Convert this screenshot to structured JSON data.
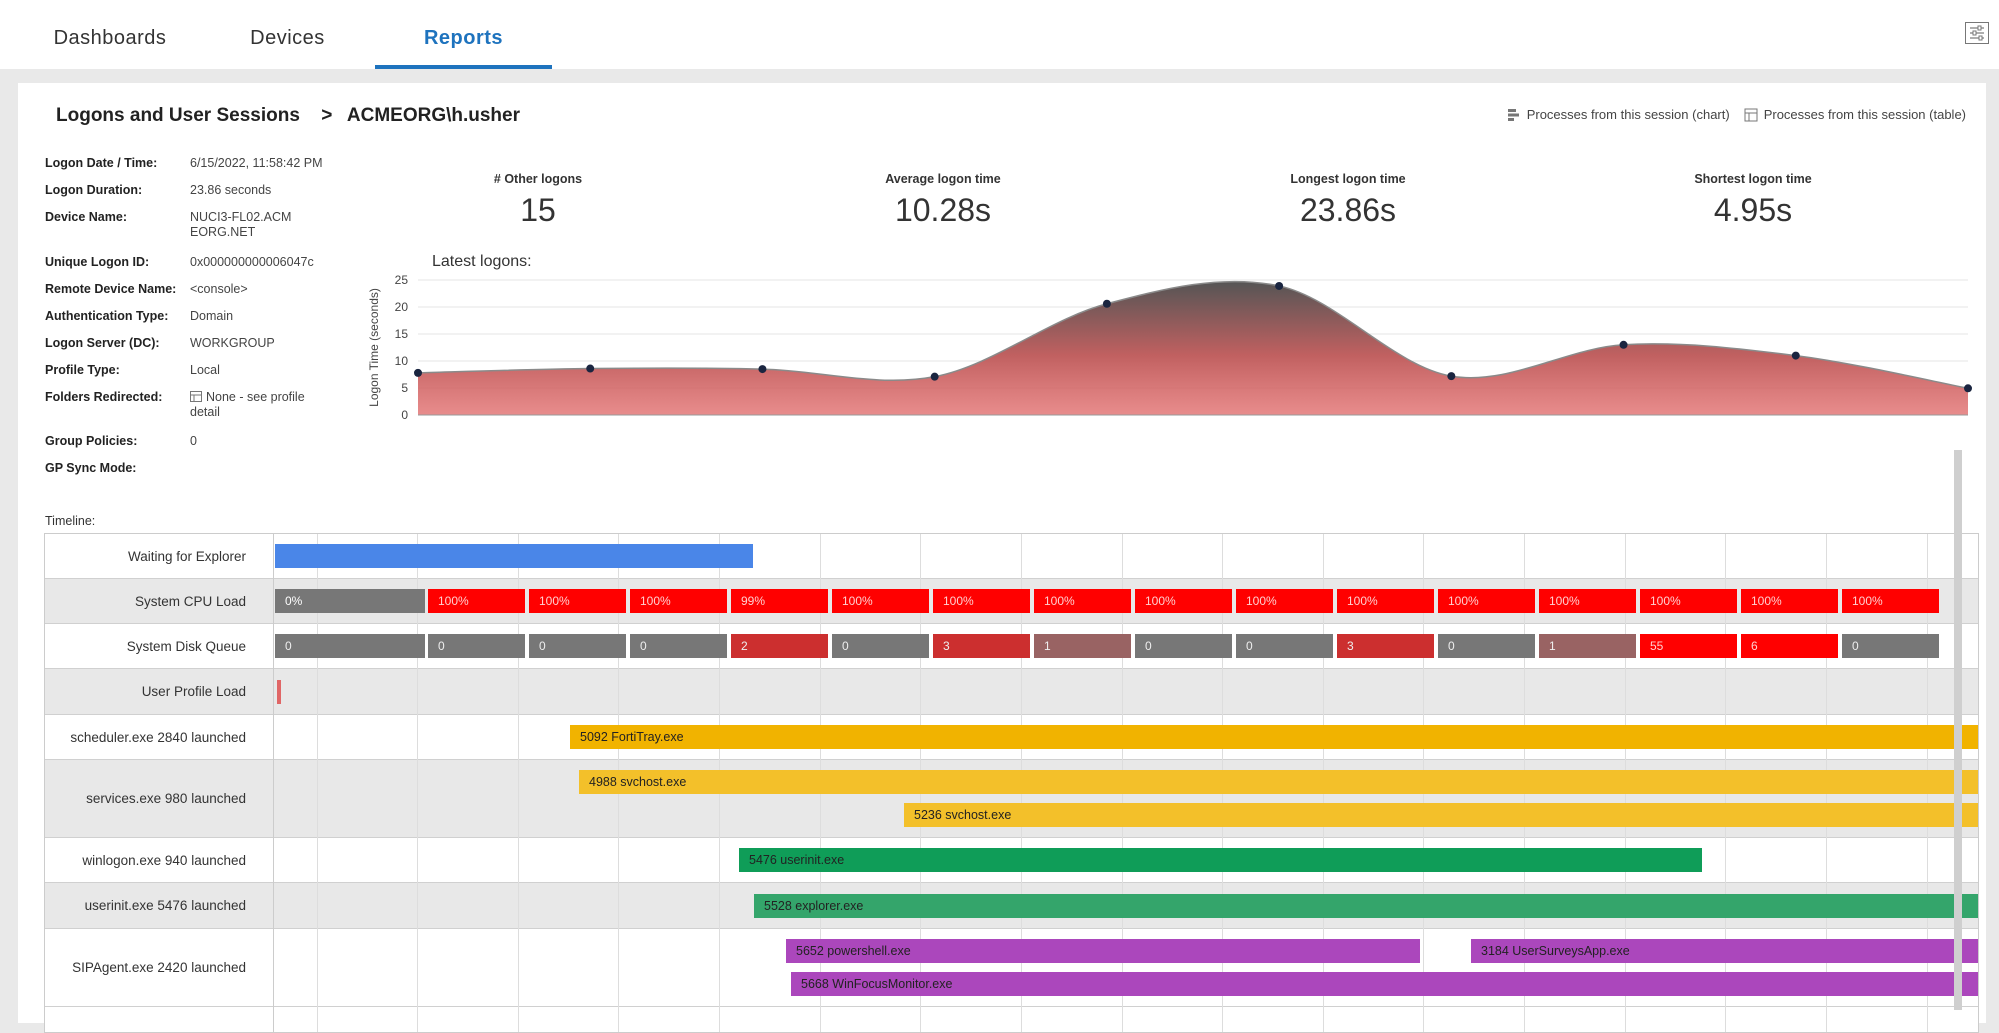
{
  "nav": {
    "tabs": [
      {
        "label": "Dashboards",
        "active": false
      },
      {
        "label": "Devices",
        "active": false
      },
      {
        "label": "Reports",
        "active": true
      }
    ],
    "settings_icon": "sliders-icon"
  },
  "breadcrumb": {
    "parent": "Logons and User Sessions",
    "separator": ">",
    "current": "ACMEORG\\h.usher"
  },
  "links": {
    "chart": "Processes from this session (chart)",
    "table": "Processes from this session (table)"
  },
  "details": [
    {
      "label": "Logon Date / Time:",
      "value": "6/15/2022, 11:58:42 PM"
    },
    {
      "label": "Logon Duration:",
      "value": "23.86 seconds"
    },
    {
      "label": "Device Name:",
      "value": "NUCI3-FL02.ACMEORG.NET"
    },
    {
      "label": "Unique Logon ID:",
      "value": "0x000000000006047c"
    },
    {
      "label": "Remote Device Name:",
      "value": "<console>"
    },
    {
      "label": "Authentication Type:",
      "value": "Domain"
    },
    {
      "label": "Logon Server (DC):",
      "value": "WORKGROUP"
    },
    {
      "label": "Profile Type:",
      "value": "Local"
    },
    {
      "label": "Folders Redirected:",
      "value": "None - see profile detail"
    },
    {
      "label": "Group Policies:",
      "value": "0"
    },
    {
      "label": "GP Sync Mode:",
      "value": ""
    }
  ],
  "stats": [
    {
      "label": "# Other logons",
      "value": "15"
    },
    {
      "label": "Average logon time",
      "value": "10.28s"
    },
    {
      "label": "Longest logon time",
      "value": "23.86s"
    },
    {
      "label": "Shortest logon time",
      "value": "4.95s"
    }
  ],
  "chart_data": {
    "type": "area",
    "title": "Latest logons:",
    "xlabel": "",
    "ylabel": "Logon Time (seconds)",
    "ylim": [
      0,
      25
    ],
    "yticks": [
      0,
      5,
      10,
      15,
      20,
      25
    ],
    "values": [
      7.8,
      8.6,
      8.5,
      7.1,
      20.6,
      23.9,
      7.2,
      13.0,
      11.0,
      4.95
    ],
    "grid": true,
    "colors": {
      "fill_top": "#555555",
      "fill_bottom": "#e06666",
      "point": "#1a2540"
    }
  },
  "timeline": {
    "label": "Timeline:",
    "rows": [
      {
        "label": "Waiting for Explorer",
        "shade": false
      },
      {
        "label": "System CPU Load",
        "shade": true
      },
      {
        "label": "System Disk Queue",
        "shade": false
      },
      {
        "label": "User Profile Load",
        "shade": true
      },
      {
        "label": "scheduler.exe 2840 launched",
        "shade": false
      },
      {
        "label": "services.exe 980 launched",
        "shade": true
      },
      {
        "label": "winlogon.exe 940 launched",
        "shade": false
      },
      {
        "label": "userinit.exe 5476 launched",
        "shade": true
      },
      {
        "label": "SIPAgent.exe 2420 launched",
        "shade": false
      }
    ],
    "cpu_values": [
      "0%",
      "100%",
      "100%",
      "100%",
      "99%",
      "100%",
      "100%",
      "100%",
      "100%",
      "100%",
      "100%",
      "100%",
      "100%",
      "100%",
      "100%",
      "100%"
    ],
    "disk_values": [
      "0",
      "0",
      "0",
      "0",
      "2",
      "0",
      "3",
      "1",
      "0",
      "0",
      "3",
      "0",
      "1",
      "55",
      "6",
      "0"
    ],
    "processes": {
      "fortitray": "5092 FortiTray.exe",
      "svchost1": "4988 svchost.exe",
      "svchost2": "5236 svchost.exe",
      "userinit": "5476 userinit.exe",
      "explorer": "5528 explorer.exe",
      "powershell": "5652 powershell.exe",
      "surveys": "3184 UserSurveysApp.exe",
      "winfocus": "5668 WinFocusMonitor.exe"
    },
    "colors": {
      "explorer_wait": "#4a86e8",
      "cpu_low": "#777777",
      "cpu_high": "#ff0000",
      "disk_zero": "#777777",
      "disk_mid": "#cc2f2f",
      "disk_one": "#996363",
      "disk_high": "#ff0000",
      "orange": "#f1b300",
      "green_dark": "#0f9d58",
      "green": "#34a56b",
      "purple": "#ab47bc",
      "profile": "#e06666"
    }
  }
}
